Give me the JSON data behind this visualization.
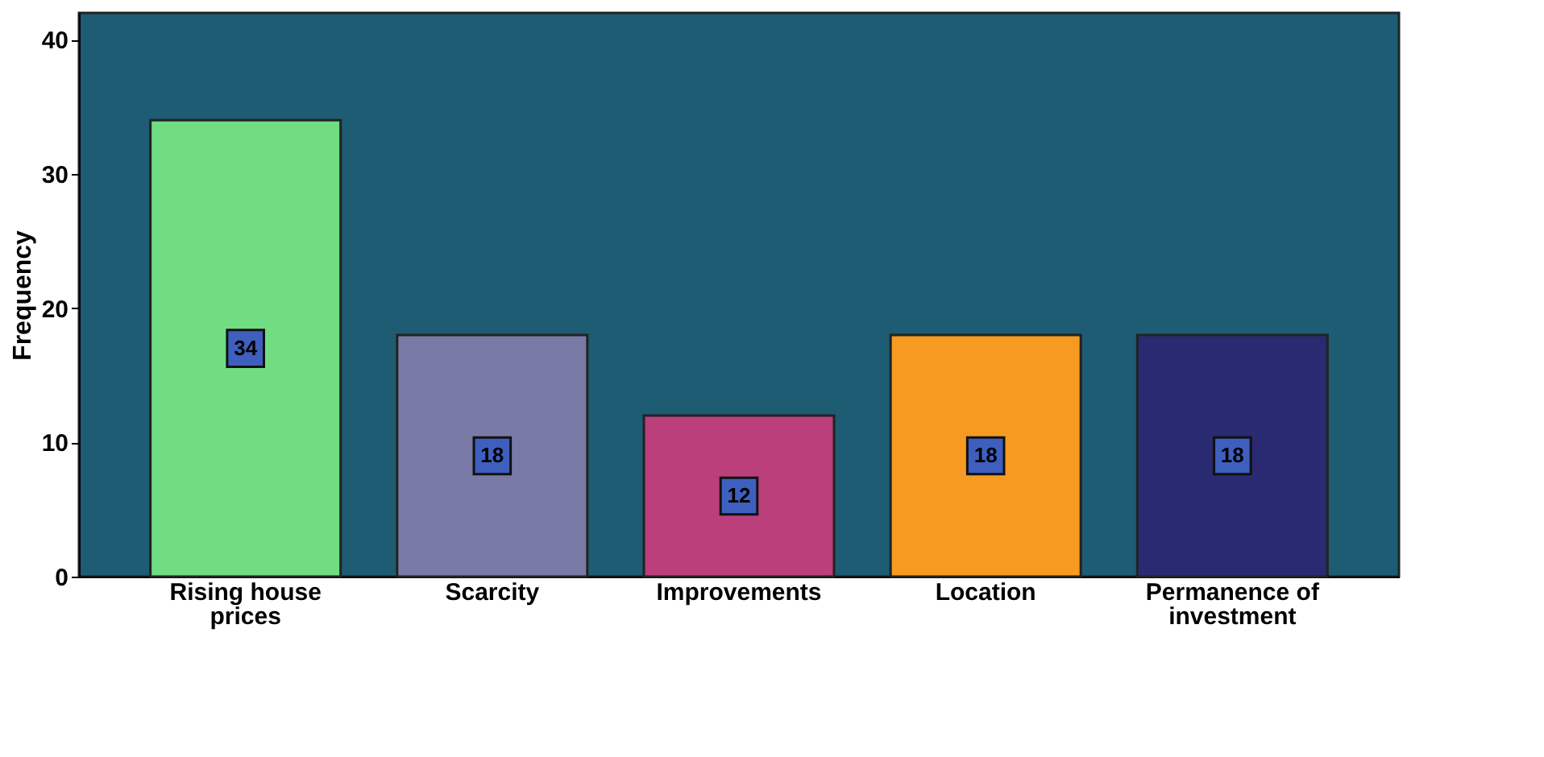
{
  "chart_data": {
    "type": "bar",
    "ylabel": "Frequency",
    "categories": [
      "Rising house prices",
      "Scarcity",
      "Improvements",
      "Location",
      "Permanence of investment"
    ],
    "values": [
      34,
      18,
      12,
      18,
      18
    ],
    "colors": [
      "#70dd82",
      "#7a7aa6",
      "#bb3f7b",
      "#f79a22",
      "#2a2a72"
    ],
    "ylim": [
      0,
      42
    ],
    "yticks": [
      0,
      10,
      20,
      30,
      40
    ],
    "grid": false,
    "data_labels": true
  }
}
